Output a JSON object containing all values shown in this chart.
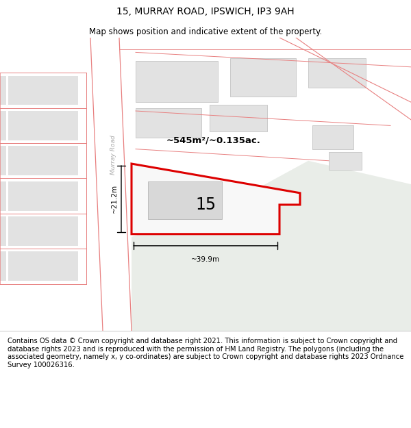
{
  "title": "15, MURRAY ROAD, IPSWICH, IP3 9AH",
  "subtitle": "Map shows position and indicative extent of the property.",
  "footer": "Contains OS data © Crown copyright and database right 2021. This information is subject to Crown copyright and database rights 2023 and is reproduced with the permission of HM Land Registry. The polygons (including the associated geometry, namely x, y co-ordinates) are subject to Crown copyright and database rights 2023 Ordnance Survey 100026316.",
  "area_label": "~545m²/~0.135ac.",
  "dim_vertical": "~21.2m",
  "dim_horizontal": "~39.9m",
  "plot_label": "15",
  "road_label": "Murray Road",
  "map_bg": "#f5f5f5",
  "green_area_color": "#e9ede8",
  "building_fill": "#e2e2e2",
  "building_outline": "#bbbbbb",
  "road_fill": "#ffffff",
  "pink_line_color": "#e88080",
  "plot_outline_color": "#dd0000",
  "plot_fill": "#f8f8f8",
  "title_fontsize": 10,
  "subtitle_fontsize": 8.5,
  "footer_fontsize": 7.2,
  "road_label_color": "#aaaaaa"
}
